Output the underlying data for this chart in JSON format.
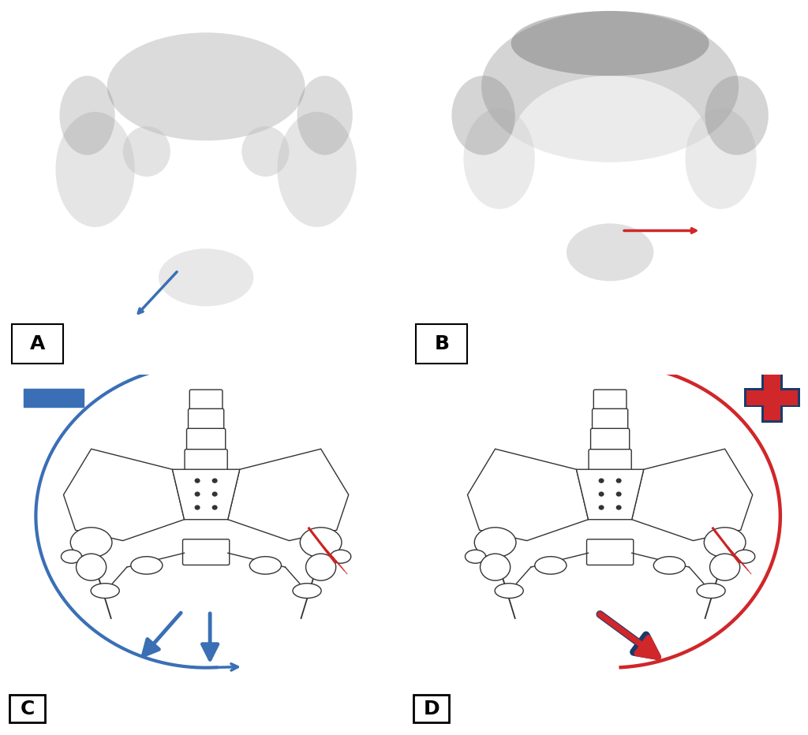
{
  "fig_width": 10.24,
  "fig_height": 9.32,
  "bg_color": "#ffffff",
  "panel_A_label": "A",
  "panel_B_label": "B",
  "panel_C_label": "C",
  "panel_D_label": "D",
  "blue_color": "#3a6fb5",
  "red_color": "#d0272a",
  "dark_blue": "#1a3a6c",
  "label_fontsize": 18
}
